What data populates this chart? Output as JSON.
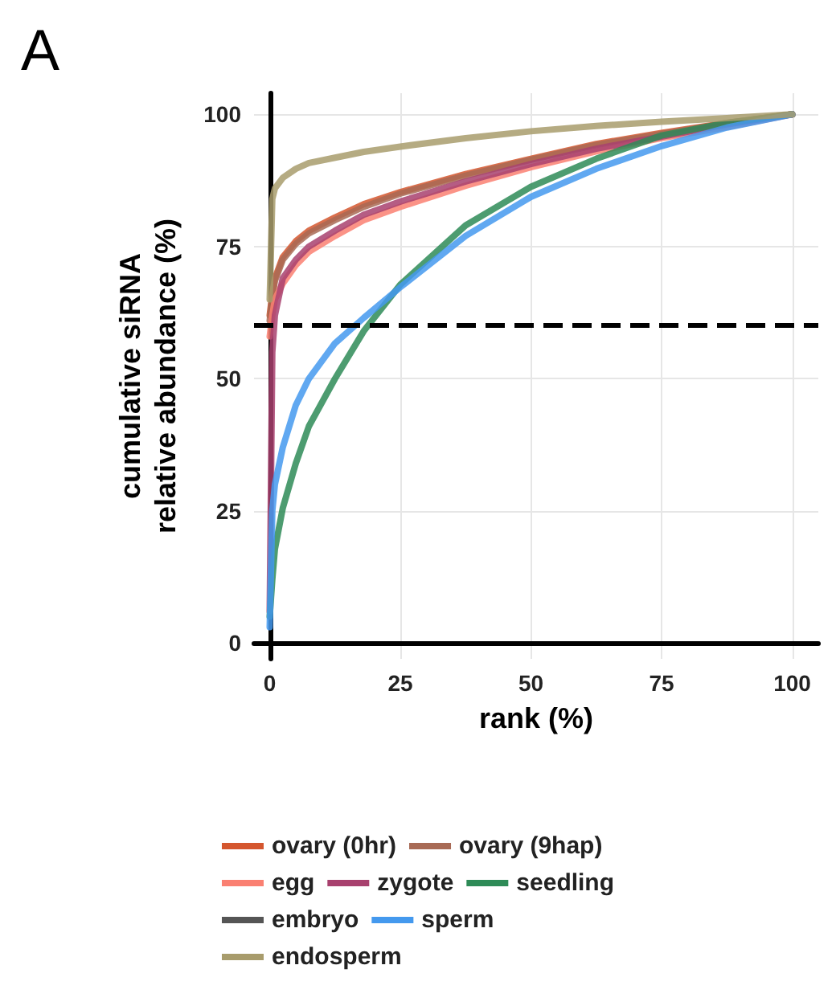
{
  "chart_data": {
    "type": "line",
    "title": "A",
    "xlabel": "rank (%)",
    "ylabel": "cumulative siRNA\nrelative abundance (%)",
    "x": [
      0,
      0.5,
      1,
      2.5,
      5,
      7.5,
      12.5,
      18,
      25,
      37.5,
      50,
      62.5,
      75,
      87.5,
      100
    ],
    "series": [
      {
        "name": "ovary (0hr)",
        "color": "#d4562e",
        "values": [
          62,
          66,
          69,
          73,
          76,
          78,
          80.5,
          83,
          85.3,
          88.7,
          91.6,
          94.4,
          96.5,
          98.4,
          100
        ]
      },
      {
        "name": "ovary (9hap)",
        "color": "#a86a55",
        "values": [
          61,
          65.5,
          68.5,
          72.5,
          75.5,
          77.5,
          80,
          82.5,
          85,
          88.4,
          91.4,
          94.2,
          96.3,
          98.3,
          100
        ]
      },
      {
        "name": "egg",
        "color": "#fa8072",
        "values": [
          58,
          62,
          65,
          68,
          71.5,
          74,
          77,
          80,
          82.5,
          86.5,
          90,
          93,
          95.5,
          97.6,
          100
        ]
      },
      {
        "name": "zygote",
        "color": "#a8416e",
        "values": [
          6,
          55,
          62,
          69,
          72.5,
          75,
          78,
          81,
          83.5,
          87.3,
          90.6,
          93.5,
          95.8,
          98.1,
          100
        ]
      },
      {
        "name": "seedling",
        "color": "#2e8b57",
        "values": [
          5,
          12,
          17.8,
          25.5,
          34,
          41,
          50,
          59,
          67.8,
          79,
          86.3,
          91.6,
          96,
          98.4,
          100
        ]
      },
      {
        "name": "embryo",
        "color": "#555555",
        "values": [
          null,
          null,
          null,
          null,
          null,
          null,
          null,
          null,
          null,
          null,
          null,
          null,
          null,
          null,
          null
        ]
      },
      {
        "name": "sperm",
        "color": "#4499ee",
        "values": [
          3,
          25,
          30,
          37,
          45,
          50,
          56.7,
          61.5,
          67.3,
          77,
          84.4,
          89.7,
          94,
          97.5,
          100
        ]
      },
      {
        "name": "endosperm",
        "color": "#a89c6c",
        "values": [
          65,
          84,
          86,
          88,
          89.7,
          90.8,
          91.8,
          92.9,
          93.9,
          95.5,
          96.8,
          97.8,
          98.6,
          99.3,
          100
        ]
      }
    ],
    "xlim": [
      -3,
      105
    ],
    "ylim": [
      -3,
      104
    ],
    "xticks": [
      0,
      25,
      50,
      75,
      100
    ],
    "yticks": [
      0,
      25,
      50,
      75,
      100
    ],
    "ref_lines": [
      {
        "axis": "y",
        "value": 60,
        "line_style": "dashed",
        "color": "#000000"
      }
    ],
    "grid": true,
    "legend": "bottom",
    "marker": "none",
    "line_style": "solid"
  }
}
